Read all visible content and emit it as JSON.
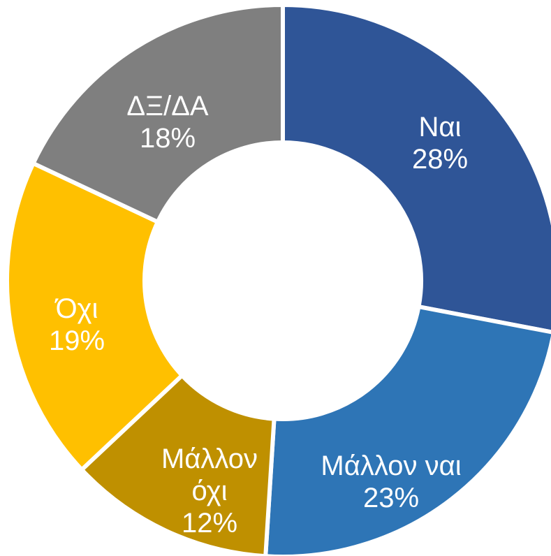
{
  "chart_data": {
    "type": "donut",
    "categories": [
      "Ναι",
      "Μάλλον ναι",
      "Μάλλον όχι",
      "Όχι",
      "ΔΞ/ΔΑ"
    ],
    "values": [
      28,
      23,
      12,
      19,
      18
    ],
    "value_labels": [
      "28%",
      "23%",
      "12%",
      "19%",
      "18%"
    ],
    "colors": [
      "#2f5597",
      "#2e75b6",
      "#bf9000",
      "#ffc000",
      "#7f7f7f"
    ]
  }
}
